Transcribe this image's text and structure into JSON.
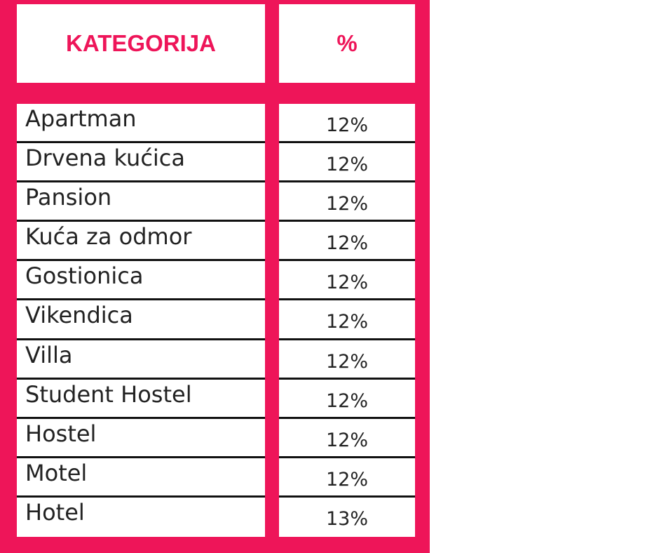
{
  "colors": {
    "frame": "#ee1559",
    "header_text": "#ee1559"
  },
  "table": {
    "headers": [
      "KATEGORIJA",
      "%"
    ],
    "rows": [
      {
        "category": "Apartman",
        "percent": "12%"
      },
      {
        "category": "Drvena kućica",
        "percent": "12%"
      },
      {
        "category": "Pansion",
        "percent": "12%"
      },
      {
        "category": "Kuća za odmor",
        "percent": "12%"
      },
      {
        "category": "Gostionica",
        "percent": "12%"
      },
      {
        "category": "Vikendica",
        "percent": "12%"
      },
      {
        "category": "Villa",
        "percent": "12%"
      },
      {
        "category": "Student Hostel",
        "percent": "12%"
      },
      {
        "category": "Hostel",
        "percent": "12%"
      },
      {
        "category": "Motel",
        "percent": "12%"
      },
      {
        "category": "Hotel",
        "percent": "13%"
      }
    ]
  }
}
